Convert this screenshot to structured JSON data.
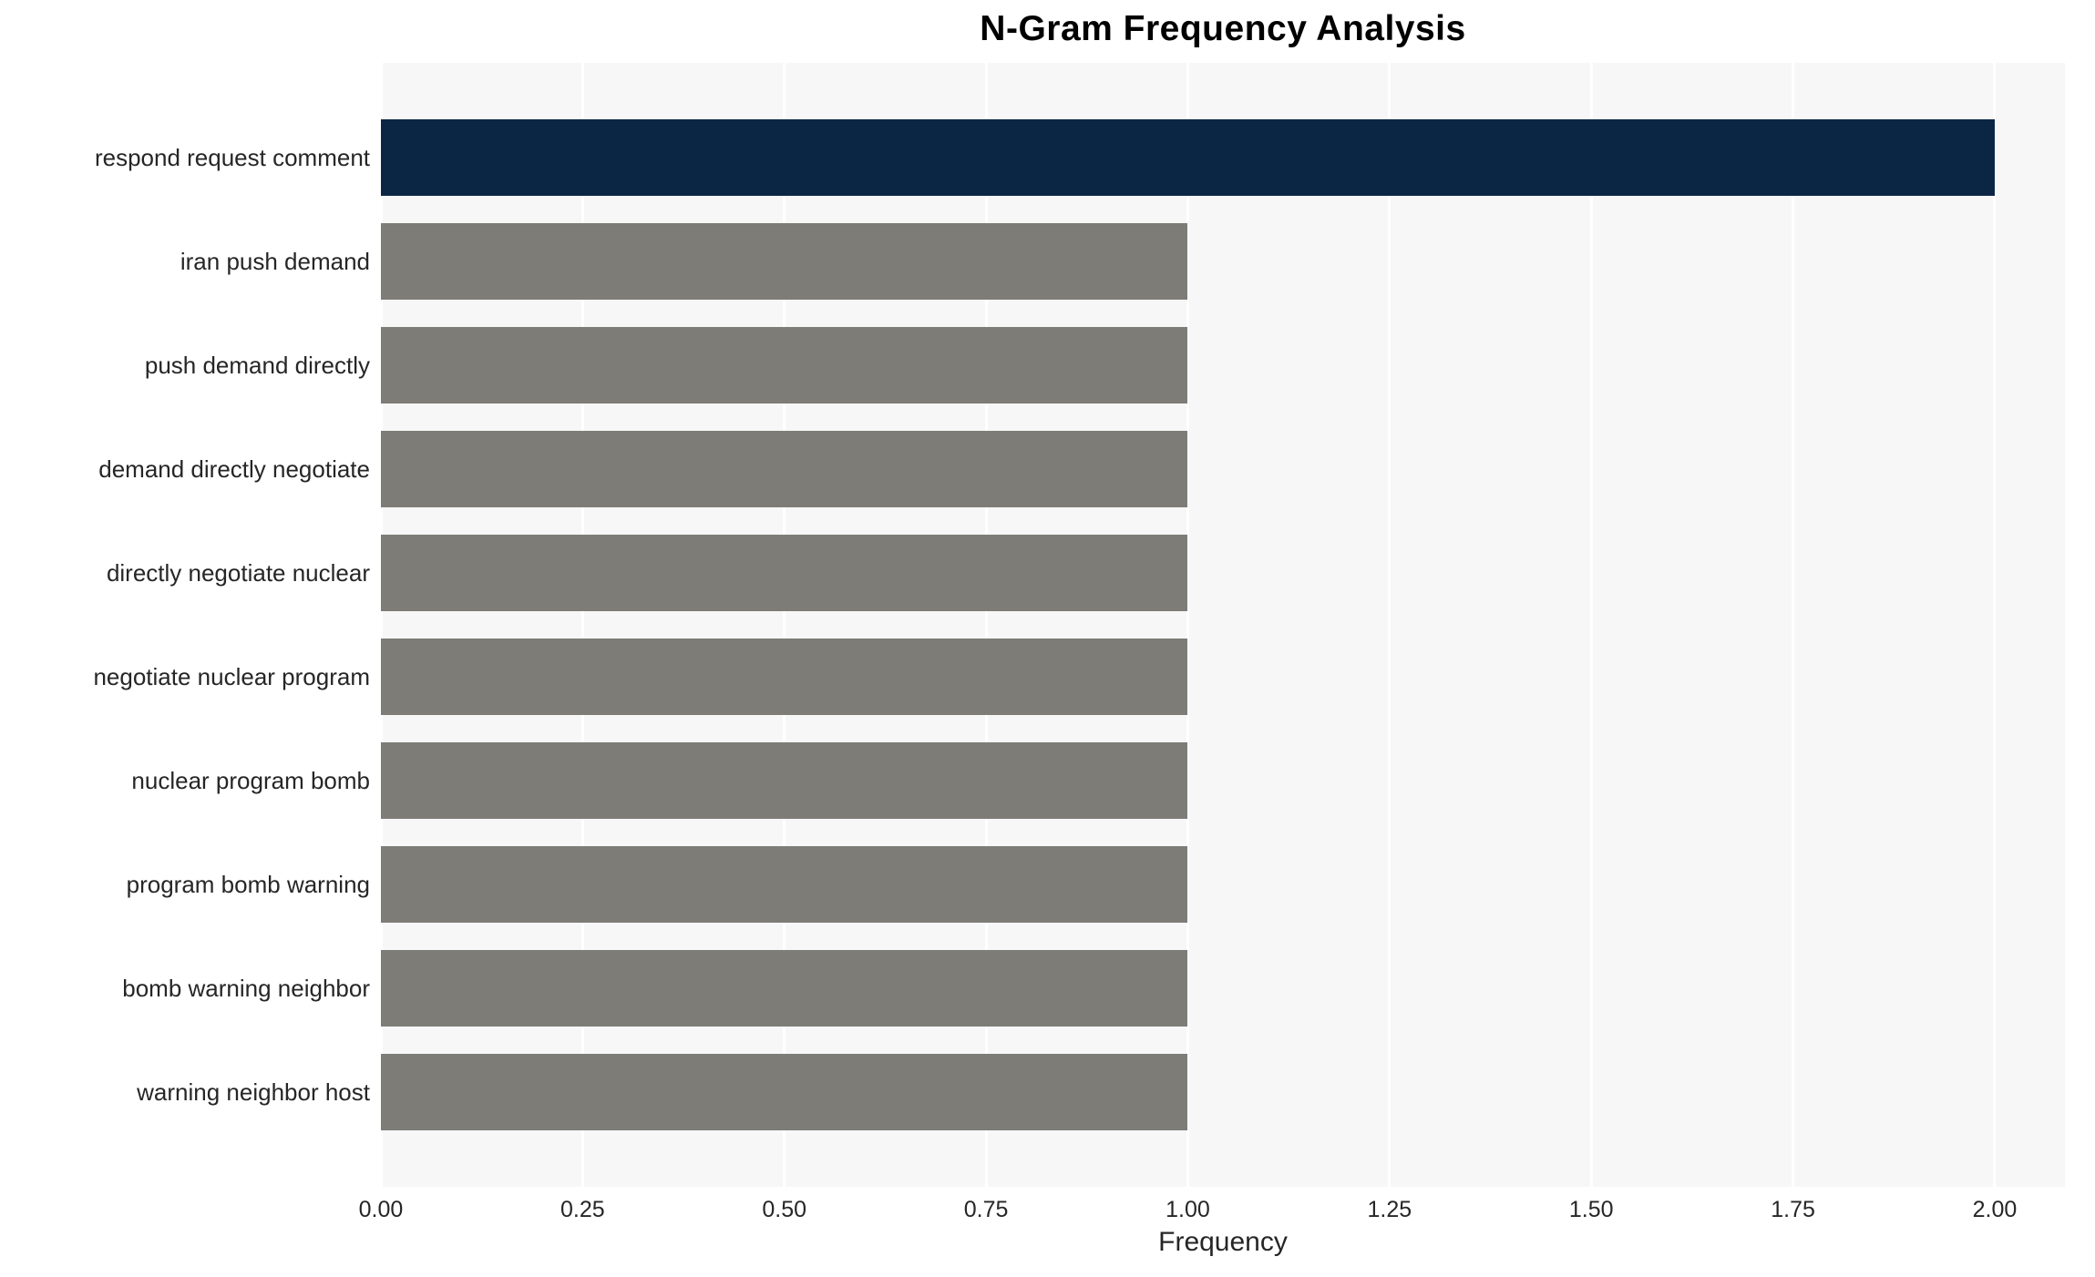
{
  "chart_data": {
    "type": "bar",
    "orientation": "horizontal",
    "title": "N-Gram Frequency Analysis",
    "xlabel": "Frequency",
    "ylabel": "",
    "categories": [
      "respond request comment",
      "iran push demand",
      "push demand directly",
      "demand directly negotiate",
      "directly negotiate nuclear",
      "negotiate nuclear program",
      "nuclear program bomb",
      "program bomb warning",
      "bomb warning neighbor",
      "warning neighbor host"
    ],
    "values": [
      2,
      1,
      1,
      1,
      1,
      1,
      1,
      1,
      1,
      1
    ],
    "xlim": [
      0,
      2.087
    ],
    "xticks": [
      0,
      0.25,
      0.5,
      0.75,
      1.0,
      1.25,
      1.5,
      1.75,
      2.0
    ],
    "xtick_labels": [
      "0.00",
      "0.25",
      "0.50",
      "0.75",
      "1.00",
      "1.25",
      "1.50",
      "1.75",
      "2.00"
    ],
    "grid": true,
    "legend": "none",
    "colors": {
      "highlight_bar": "#0b2545",
      "default_bar": "#7d7c77",
      "plot_background": "#f7f7f7",
      "gridline": "#ffffff",
      "text": "#262626",
      "figure_background": "#ffffff"
    },
    "highlight_index": 0,
    "bar_colors": [
      "#0b2545",
      "#7d7c77",
      "#7d7c77",
      "#7d7c77",
      "#7d7c77",
      "#7d7c77",
      "#7d7c77",
      "#7d7c77",
      "#7d7c77",
      "#7d7c77"
    ]
  }
}
